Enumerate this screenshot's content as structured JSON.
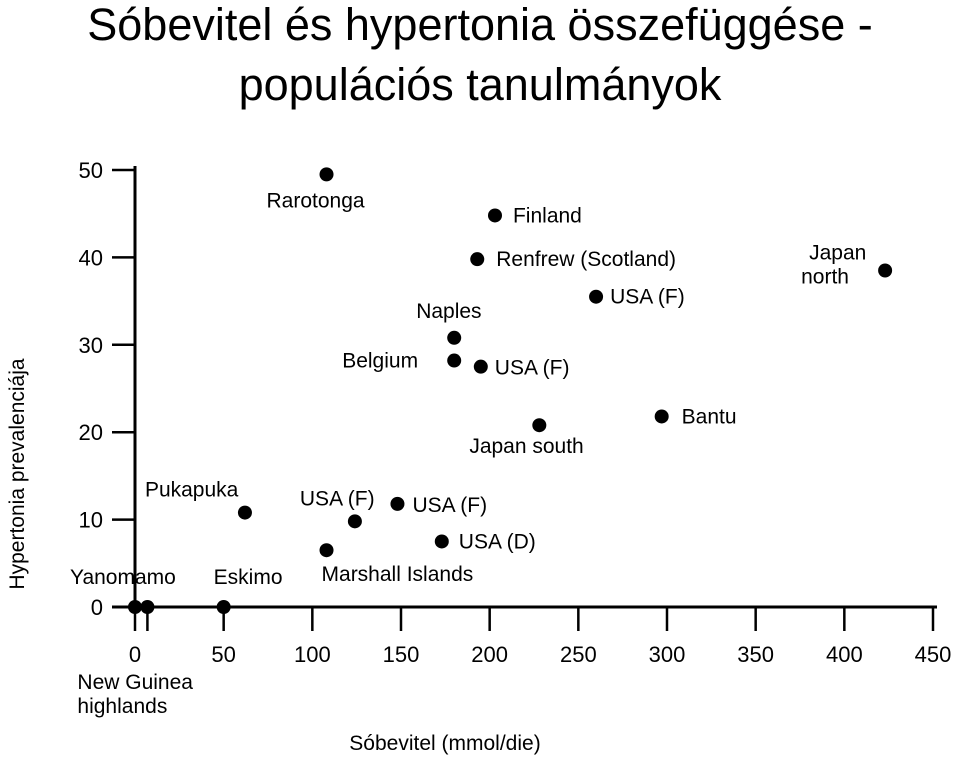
{
  "title_line1": "Sóbevitel és hypertonia összefüggése -",
  "title_line2": "populációs tanulmányok",
  "chart_data": {
    "type": "scatter",
    "xlabel": "Sóbevitel (mmol/die)",
    "ylabel": "Hypertonia prevalenciája",
    "xlim": [
      0,
      450
    ],
    "ylim": [
      0,
      50
    ],
    "xticks": [
      0,
      50,
      100,
      150,
      200,
      250,
      300,
      350,
      400,
      450
    ],
    "yticks": [
      0,
      10,
      20,
      30,
      40,
      50
    ],
    "grid": false,
    "points": [
      {
        "label": "Yanomamo",
        "x": 0,
        "y": 0
      },
      {
        "label": "New Guinea highlands",
        "x": 7,
        "y": 0
      },
      {
        "label": "Eskimo",
        "x": 50,
        "y": 0
      },
      {
        "label": "Pukapuka",
        "x": 62,
        "y": 10.8
      },
      {
        "label": "Marshall Islands",
        "x": 108,
        "y": 6.5
      },
      {
        "label": "USA (F)",
        "x": 124,
        "y": 9.8
      },
      {
        "label": "USA (F)",
        "x": 148,
        "y": 11.8
      },
      {
        "label": "USA (D)",
        "x": 173,
        "y": 7.5
      },
      {
        "label": "Rarotonga",
        "x": 108,
        "y": 49.5
      },
      {
        "label": "Finland",
        "x": 203,
        "y": 44.8
      },
      {
        "label": "Renfrew (Scotland)",
        "x": 193,
        "y": 39.8
      },
      {
        "label": "Naples",
        "x": 180,
        "y": 30.8
      },
      {
        "label": "Belgium",
        "x": 180,
        "y": 28.2
      },
      {
        "label": "USA (F)",
        "x": 195,
        "y": 27.5
      },
      {
        "label": "USA (F)",
        "x": 260,
        "y": 35.5
      },
      {
        "label": "Japan south",
        "x": 228,
        "y": 20.8
      },
      {
        "label": "Bantu",
        "x": 297,
        "y": 21.8
      },
      {
        "label": "Japan north",
        "x": 423,
        "y": 38.5
      }
    ]
  }
}
